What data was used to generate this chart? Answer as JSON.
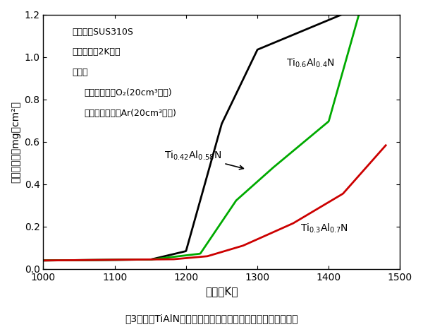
{
  "title": "",
  "xlabel": "温度（K）",
  "ylabel": "酸化重量増（mg／cm²）",
  "xlim": [
    1000,
    1500
  ],
  "ylim": [
    0.0,
    1.2
  ],
  "xticks": [
    1000,
    1100,
    1200,
    1300,
    1400,
    1500
  ],
  "yticks": [
    0.0,
    0.2,
    0.4,
    0.6,
    0.8,
    1.0,
    1.2
  ],
  "caption": "嘰3　各種TiAlN膜の酸素気流中加熱にともなう高温酸化特性",
  "annotation_text": "基　材：SUS310S\n昇温速度：2K／分\n雰囲気\n　加熱時：乾燥O₂（20cm³／分）\n　冷却時：高純度Ar（20cm³／分）",
  "line_black_label": "Ti$_{0.6}$Al$_{0.4}$N",
  "line_green_label": "Ti$_{0.42}$Al$_{0.58}$N",
  "line_red_label": "Ti$_{0.3}$Al$_{0.7}$N",
  "line_black_color": "#000000",
  "line_green_color": "#00aa00",
  "line_red_color": "#cc0000",
  "background_color": "#ffffff",
  "figsize": [
    6.0,
    4.63
  ],
  "dpi": 100
}
